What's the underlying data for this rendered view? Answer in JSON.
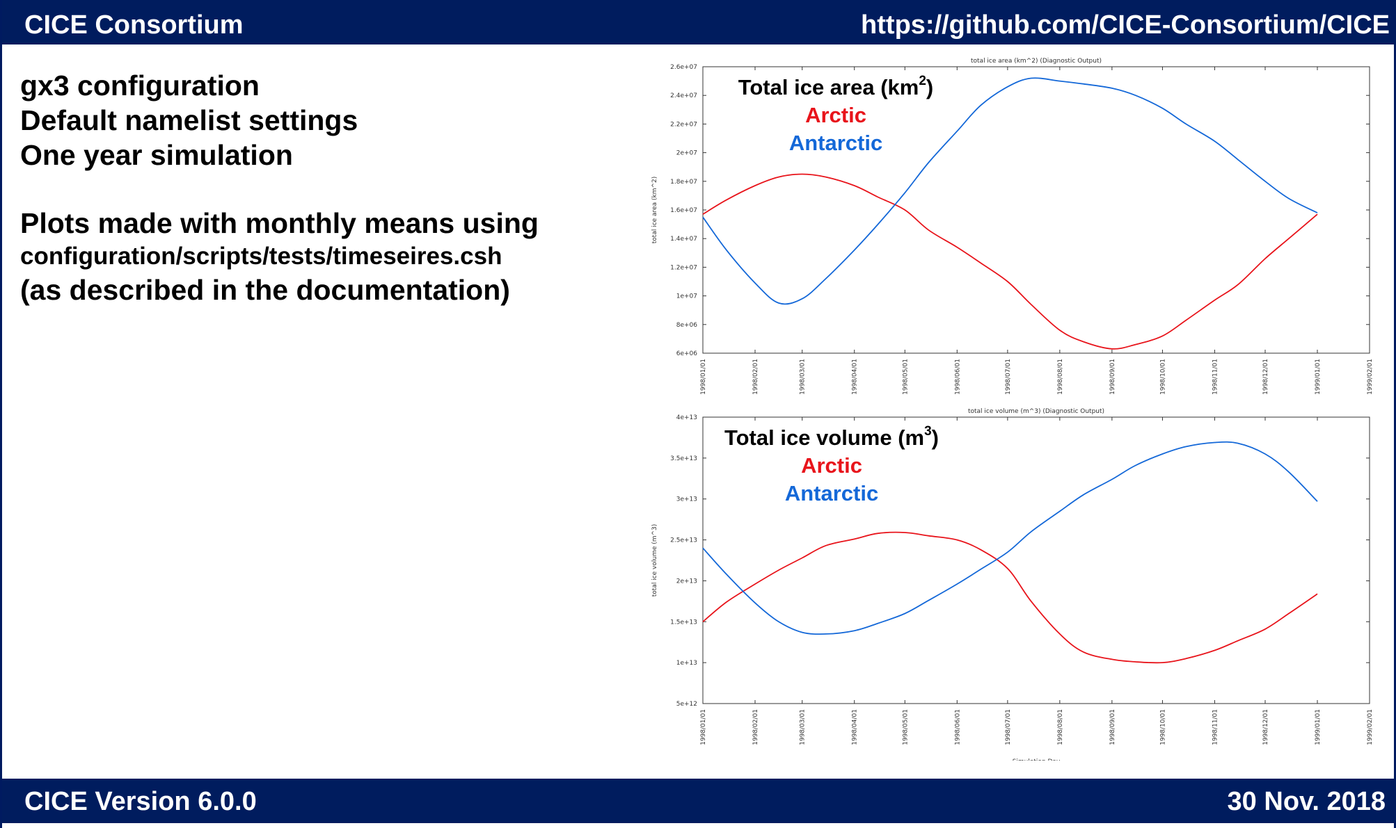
{
  "header": {
    "left": "CICE Consortium",
    "right": "https://github.com/CICE-Consortium/CICE"
  },
  "footer": {
    "left": "CICE Version 6.0.0",
    "right": "30 Nov. 2018"
  },
  "text": {
    "line1": "gx3 configuration",
    "line2": "Default namelist settings",
    "line3": "One year simulation",
    "line4": "Plots made with monthly means using",
    "line5": "configuration/scripts/tests/timeseires.csh",
    "line6": "(as described in the documentation)"
  },
  "overlays": {
    "area_title": "Total ice area (km",
    "area_title_sup": "2",
    "volume_title": "Total ice volume (m",
    "volume_title_sup": "3",
    "arctic": "Arctic",
    "antarctic": "Antarctic"
  },
  "colors": {
    "header_bg": "#001c5e",
    "arctic": "#e8141b",
    "antarctic": "#1468d8"
  },
  "chart_data": [
    {
      "type": "line",
      "title": "total ice area  (km^2) (Diagnostic Output)",
      "xlabel": "",
      "ylabel": "total ice area  (km^2)",
      "x_ticks": [
        "1998/01/01",
        "1998/02/01",
        "1998/03/01",
        "1998/04/01",
        "1998/05/01",
        "1998/06/01",
        "1998/07/01",
        "1998/08/01",
        "1998/09/01",
        "1998/10/01",
        "1998/11/01",
        "1998/12/01",
        "1999/01/01",
        "1999/02/01"
      ],
      "y_ticks": [
        "6e+06",
        "8e+06",
        "1e+07",
        "1.2e+07",
        "1.4e+07",
        "1.6e+07",
        "1.8e+07",
        "2e+07",
        "2.2e+07",
        "2.4e+07",
        "2.6e+07"
      ],
      "ylim": [
        6000000,
        26000000
      ],
      "grid": false,
      "series": [
        {
          "name": "Arctic",
          "color": "#e8141b",
          "x": [
            "1998/01/01",
            "1998/01/15",
            "1998/02/01",
            "1998/02/15",
            "1998/03/01",
            "1998/03/15",
            "1998/04/01",
            "1998/04/15",
            "1998/05/01",
            "1998/05/15",
            "1998/06/01",
            "1998/06/15",
            "1998/07/01",
            "1998/07/15",
            "1998/08/01",
            "1998/08/15",
            "1998/09/01",
            "1998/09/15",
            "1998/10/01",
            "1998/10/15",
            "1998/11/01",
            "1998/11/15",
            "1998/12/01",
            "1998/12/15",
            "1999/01/01"
          ],
          "values": [
            15700000,
            16700000,
            17700000,
            18300000,
            18500000,
            18300000,
            17700000,
            16900000,
            16000000,
            14600000,
            13400000,
            12300000,
            11000000,
            9400000,
            7600000,
            6800000,
            6300000,
            6600000,
            7200000,
            8300000,
            9700000,
            10800000,
            12600000,
            14000000,
            15700000
          ]
        },
        {
          "name": "Antarctic",
          "color": "#1468d8",
          "x": [
            "1998/01/01",
            "1998/01/15",
            "1998/02/01",
            "1998/02/15",
            "1998/03/01",
            "1998/03/15",
            "1998/04/01",
            "1998/04/15",
            "1998/05/01",
            "1998/05/15",
            "1998/06/01",
            "1998/06/15",
            "1998/07/01",
            "1998/07/15",
            "1998/08/01",
            "1998/08/15",
            "1998/09/01",
            "1998/09/15",
            "1998/10/01",
            "1998/10/15",
            "1998/11/01",
            "1998/11/15",
            "1998/12/01",
            "1998/12/15",
            "1999/01/01"
          ],
          "values": [
            15500000,
            13200000,
            10900000,
            9500000,
            9800000,
            11200000,
            13200000,
            15000000,
            17200000,
            19300000,
            21500000,
            23300000,
            24600000,
            25200000,
            25000000,
            24800000,
            24500000,
            24000000,
            23100000,
            22000000,
            20800000,
            19500000,
            18000000,
            16800000,
            15800000
          ]
        }
      ]
    },
    {
      "type": "line",
      "title": "total ice volume (m^3) (Diagnostic Output)",
      "xlabel": "Simulation Day",
      "ylabel": "total ice volume (m^3)",
      "x_ticks": [
        "1998/01/01",
        "1998/02/01",
        "1998/03/01",
        "1998/04/01",
        "1998/05/01",
        "1998/06/01",
        "1998/07/01",
        "1998/08/01",
        "1998/09/01",
        "1998/10/01",
        "1998/11/01",
        "1998/12/01",
        "1999/01/01",
        "1999/02/01"
      ],
      "y_ticks": [
        "5e+12",
        "1e+13",
        "1.5e+13",
        "2e+13",
        "2.5e+13",
        "3e+13",
        "3.5e+13",
        "4e+13"
      ],
      "ylim": [
        5000000000000,
        40000000000000
      ],
      "grid": false,
      "series": [
        {
          "name": "Arctic",
          "color": "#e8141b",
          "x": [
            "1998/01/01",
            "1998/01/15",
            "1998/02/01",
            "1998/02/15",
            "1998/03/01",
            "1998/03/15",
            "1998/04/01",
            "1998/04/15",
            "1998/05/01",
            "1998/05/15",
            "1998/06/01",
            "1998/06/15",
            "1998/07/01",
            "1998/07/15",
            "1998/08/01",
            "1998/08/15",
            "1998/09/01",
            "1998/09/15",
            "1998/10/01",
            "1998/10/15",
            "1998/11/01",
            "1998/11/15",
            "1998/12/01",
            "1998/12/15",
            "1999/01/01"
          ],
          "values": [
            15000000000000,
            17400000000000,
            19600000000000,
            21300000000000,
            22800000000000,
            24300000000000,
            25100000000000,
            25800000000000,
            25900000000000,
            25500000000000,
            25000000000000,
            23800000000000,
            21500000000000,
            17500000000000,
            13500000000000,
            11300000000000,
            10400000000000,
            10100000000000,
            10000000000000,
            10500000000000,
            11500000000000,
            12700000000000,
            14100000000000,
            16000000000000,
            18400000000000
          ]
        },
        {
          "name": "Antarctic",
          "color": "#1468d8",
          "x": [
            "1998/01/01",
            "1998/01/15",
            "1998/02/01",
            "1998/02/15",
            "1998/03/01",
            "1998/03/15",
            "1998/04/01",
            "1998/04/15",
            "1998/05/01",
            "1998/05/15",
            "1998/06/01",
            "1998/06/15",
            "1998/07/01",
            "1998/07/15",
            "1998/08/01",
            "1998/08/15",
            "1998/09/01",
            "1998/09/15",
            "1998/10/01",
            "1998/10/15",
            "1998/11/01",
            "1998/11/15",
            "1998/12/01",
            "1998/12/15",
            "1999/01/01"
          ],
          "values": [
            24000000000000,
            20800000000000,
            17300000000000,
            15000000000000,
            13700000000000,
            13500000000000,
            13900000000000,
            14800000000000,
            16000000000000,
            17600000000000,
            19600000000000,
            21400000000000,
            23500000000000,
            26000000000000,
            28500000000000,
            30500000000000,
            32400000000000,
            34100000000000,
            35500000000000,
            36400000000000,
            36900000000000,
            36800000000000,
            35500000000000,
            33300000000000,
            29700000000000
          ]
        }
      ]
    }
  ]
}
